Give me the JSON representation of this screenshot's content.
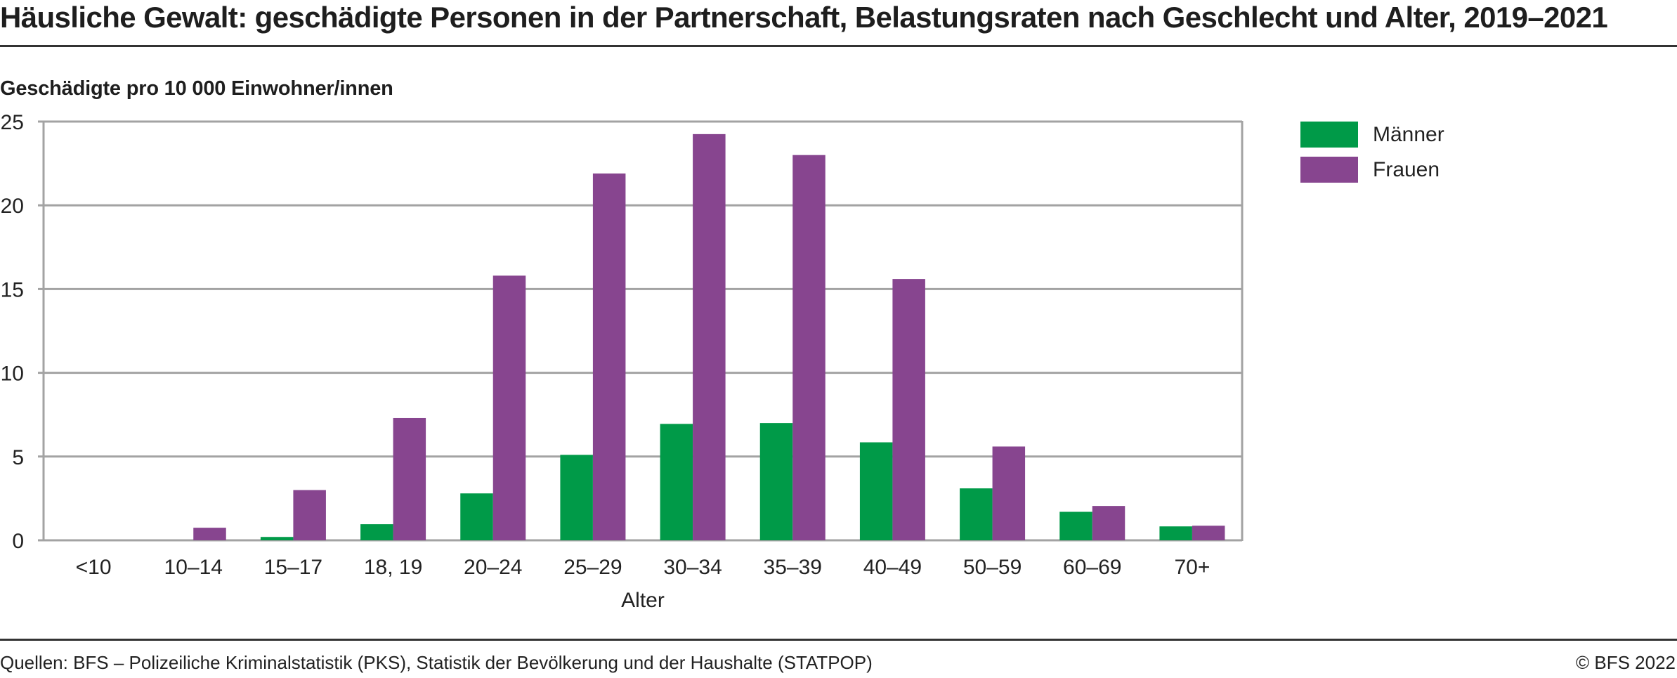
{
  "title": "Häusliche Gewalt: geschädigte Personen in der Partnerschaft, Belastungsraten nach Geschlecht und Alter, 2019–2021",
  "footer": {
    "source": "Quellen: BFS – Polizeiliche Kriminalstatistik (PKS), Statistik der Bevölkerung und der Haushalte (STATPOP)",
    "copyright": "© BFS 2022"
  },
  "chart_data": {
    "type": "bar",
    "title": "Häusliche Gewalt: geschädigte Personen in der Partnerschaft, Belastungsraten nach Geschlecht und Alter, 2019–2021",
    "ylabel": "Geschädigte pro 10 000 Einwohner/innen",
    "xlabel": "Alter",
    "ylim": [
      0,
      25
    ],
    "yticks": [
      0,
      5,
      10,
      15,
      20,
      25
    ],
    "grid": true,
    "legend_position": "right",
    "categories": [
      "<10",
      "10–14",
      "15–17",
      "18, 19",
      "20–24",
      "25–29",
      "30–34",
      "35–39",
      "40–49",
      "50–59",
      "60–69",
      "70+"
    ],
    "series": [
      {
        "name": "Männer",
        "color": "#009a48",
        "values": [
          0,
          0,
          0.2,
          0.96,
          2.8,
          5.1,
          6.95,
          7.0,
          5.85,
          3.1,
          1.7,
          0.83
        ]
      },
      {
        "name": "Frauen",
        "color": "#87458f",
        "values": [
          0,
          0.75,
          3.0,
          7.3,
          15.8,
          21.9,
          24.25,
          23.0,
          15.6,
          5.6,
          2.05,
          0.87
        ]
      }
    ]
  }
}
